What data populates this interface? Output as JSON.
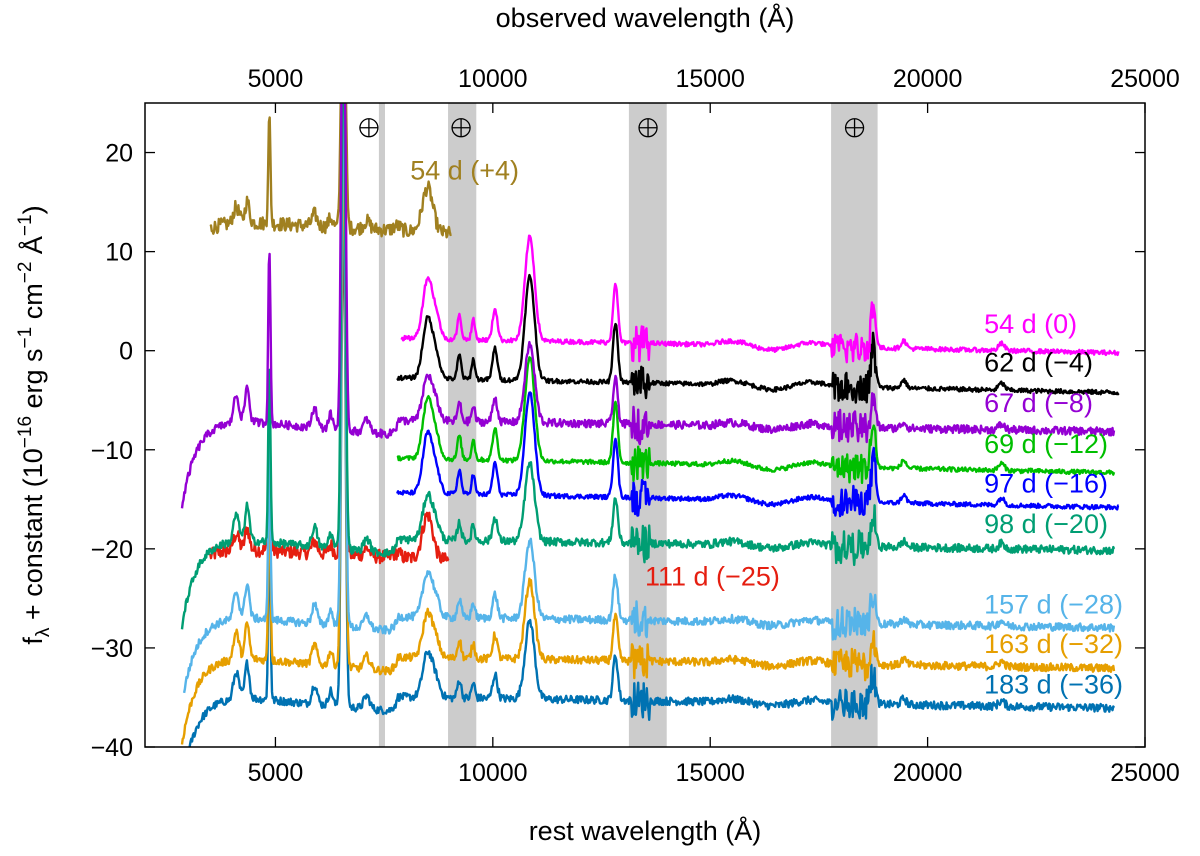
{
  "chart_data": {
    "type": "line",
    "title": "",
    "xlabel": "rest wavelength (Å)",
    "x2label": "observed wavelength (Å)",
    "ylabel": {
      "base": "f",
      "sub": "λ",
      "text1": " + constant (10",
      "exp1": "−16",
      "text2": " erg s",
      "exp2": "−1",
      "text3": " cm",
      "exp3": "−2",
      "text4": " Å",
      "exp4": "−1",
      "text5": ")"
    },
    "xlim": [
      2000,
      25000
    ],
    "ylim": [
      -40,
      25
    ],
    "x_ticks": [
      {
        "value": 5000,
        "label": "5000"
      },
      {
        "value": 10000,
        "label": "10000"
      },
      {
        "value": 15000,
        "label": "15000"
      },
      {
        "value": 20000,
        "label": "20000"
      },
      {
        "value": 25000,
        "label": "25000"
      }
    ],
    "x2_ticks": [
      {
        "value": 5000,
        "label": "5000"
      },
      {
        "value": 10000,
        "label": "10000"
      },
      {
        "value": 15000,
        "label": "15000"
      },
      {
        "value": 20000,
        "label": "20000"
      },
      {
        "value": 25000,
        "label": "25000"
      }
    ],
    "y_ticks": [
      {
        "value": 20,
        "label": "20"
      },
      {
        "value": 10,
        "label": "10"
      },
      {
        "value": 0,
        "label": "0"
      },
      {
        "value": -10,
        "label": "−10"
      },
      {
        "value": -20,
        "label": "−20"
      },
      {
        "value": -30,
        "label": "−30"
      },
      {
        "value": -40,
        "label": "−40"
      }
    ],
    "telluric_bands": [
      {
        "x0": 7380,
        "x1": 7520,
        "symbol": "⊕",
        "symbol_x": 7150
      },
      {
        "x0": 8970,
        "x1": 9620,
        "symbol": "⊕",
        "symbol_x": 9270
      },
      {
        "x0": 13130,
        "x1": 14000,
        "symbol": "⊕",
        "symbol_x": 13570
      },
      {
        "x0": 17780,
        "x1": 18850,
        "symbol": "⊕",
        "symbol_x": 18320
      }
    ],
    "telluric_symbol_y": 22.5,
    "series": [
      {
        "name": "54 d (0)",
        "color": "#ff00ff",
        "offset": 0.8,
        "x_range": [
          7900,
          24400
        ],
        "label_x": 21300,
        "label_y": 2.7,
        "nir_only": true
      },
      {
        "name": "62 d (−4)",
        "color": "#000000",
        "offset": -3.2,
        "x_range": [
          7800,
          24400
        ],
        "label_x": 21300,
        "label_y": -1.2,
        "nir_only": true
      },
      {
        "name": "67 d (−8)",
        "color": "#9400d3",
        "offset": -7.4,
        "x_range": [
          2850,
          24300
        ],
        "label_x": 21300,
        "label_y": -5.3
      },
      {
        "name": "69 d (−12)",
        "color": "#00bf00",
        "offset": -11.3,
        "x_range": [
          7800,
          24300
        ],
        "label_x": 21300,
        "label_y": -9.4,
        "nir_only": true
      },
      {
        "name": "97 d (−16)",
        "color": "#0000ff",
        "offset": -14.8,
        "x_range": [
          7800,
          24400
        ],
        "label_x": 21300,
        "label_y": -13.4,
        "nir_only": true
      },
      {
        "name": "98 d (−20)",
        "color": "#009e73",
        "offset": -19.4,
        "x_range": [
          2850,
          24300
        ],
        "label_x": 21300,
        "label_y": -17.5
      },
      {
        "name": "157 d (−28)",
        "color": "#56b4e9",
        "offset": -27.2,
        "x_range": [
          2900,
          24300
        ],
        "label_x": 21300,
        "label_y": -25.6
      },
      {
        "name": "163 d (−32)",
        "color": "#e69f00",
        "offset": -31.3,
        "x_range": [
          2850,
          24300
        ],
        "label_x": 21300,
        "label_y": -29.6
      },
      {
        "name": "183 d (−36)",
        "color": "#0072b2",
        "offset": -35.3,
        "x_range": [
          2850,
          24300
        ],
        "label_x": 21300,
        "label_y": -33.7
      }
    ],
    "optical_series": [
      {
        "name": "54 d (+4)",
        "color": "#a08020",
        "offset": 12.8,
        "x_range": [
          3500,
          9050
        ],
        "label_x": 8100,
        "label_y": 18.2
      },
      {
        "name": "111 d (−25)",
        "color": "#e51e10",
        "offset": -20.2,
        "x_range": [
          3500,
          9000
        ],
        "label_x": 13500,
        "label_y": -22.8
      }
    ]
  }
}
